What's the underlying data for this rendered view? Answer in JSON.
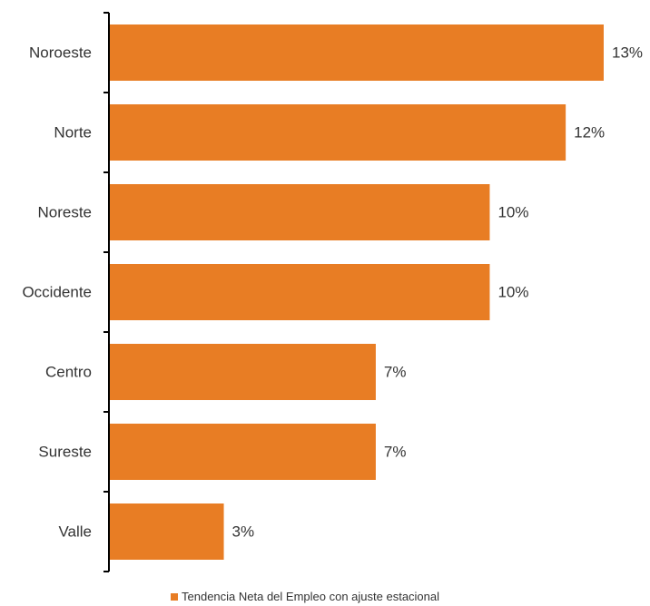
{
  "chart_data": {
    "type": "bar",
    "orientation": "horizontal",
    "categories": [
      "Noroeste",
      "Norte",
      "Noreste",
      "Occidente",
      "Centro",
      "Sureste",
      "Valle"
    ],
    "series": [
      {
        "name": "Tendencia Neta del Empleo con ajuste estacional",
        "values": [
          13,
          12,
          10,
          10,
          7,
          7,
          3
        ],
        "labels": [
          "13%",
          "12%",
          "10%",
          "10%",
          "7%",
          "7%",
          "3%"
        ],
        "color": "#E87D24"
      }
    ],
    "title": "",
    "xlabel": "",
    "ylabel": "",
    "xlim": [
      0,
      13
    ],
    "grid": false,
    "legend_position": "bottom"
  }
}
